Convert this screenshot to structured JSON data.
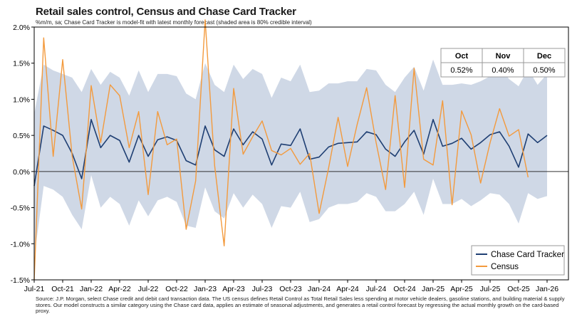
{
  "title": "Retail sales control, Census and Chase Card Tracker",
  "subtitle": "%m/m, sa; Chase Card Tracker is model-fit with latest monthly forecast (shaded area is 80% credible interval)",
  "source": "Source: J.P. Morgan, select Chase credit and debit card transaction data. The US census defines Retail Control as Total Retail Sales less spending at motor vehicle dealers, gasoline stations, and building material & supply stores. Our model constructs a similar category using the Chase card data, applies an estimate of seasonal adjustments, and generates a retail control forecast by regressing the actual monthly growth on the card-based proxy.",
  "forecast_table": {
    "headers": [
      "Oct",
      "Nov",
      "Dec"
    ],
    "values": [
      "0.52%",
      "0.40%",
      "0.50%"
    ]
  },
  "colors": {
    "tracker": "#1f3f73",
    "census": "#f39a3d",
    "band": "#cfd8e6"
  },
  "chart_data": {
    "type": "line",
    "title": "Retail sales control, Census and Chase Card Tracker",
    "ylabel": "",
    "xlabel": "",
    "ylim": [
      -1.5,
      2.0
    ],
    "yticks": [
      "-1.5%",
      "-1.0%",
      "-0.5%",
      "0.0%",
      "0.5%",
      "1.0%",
      "1.5%",
      "2.0%"
    ],
    "ytick_values": [
      -1.5,
      -1.0,
      -0.5,
      0.0,
      0.5,
      1.0,
      1.5,
      2.0
    ],
    "x_tick_labels": [
      "Jul-21",
      "Oct-21",
      "Jan-22",
      "Apr-22",
      "Jul-22",
      "Oct-22",
      "Jan-23",
      "Apr-23",
      "Jul-23",
      "Oct-23",
      "Jan-24",
      "Apr-24",
      "Jul-24",
      "Oct-24",
      "Jan-25",
      "Apr-25",
      "Jul-25",
      "Oct-25",
      "Jan-26"
    ],
    "x_start": "2021-07",
    "x_end": "2026-01",
    "legend_position": "bottom-right",
    "series": [
      {
        "name": "Chase Card Tracker",
        "start": "2021-07",
        "values": [
          -0.2,
          0.63,
          0.57,
          0.5,
          0.25,
          -0.1,
          0.72,
          0.33,
          0.5,
          0.43,
          0.13,
          0.5,
          0.21,
          0.44,
          0.48,
          0.43,
          0.15,
          0.09,
          0.63,
          0.3,
          0.21,
          0.59,
          0.37,
          0.55,
          0.45,
          0.09,
          0.38,
          0.36,
          0.59,
          0.17,
          0.2,
          0.34,
          0.39,
          0.4,
          0.41,
          0.55,
          0.51,
          0.31,
          0.21,
          0.41,
          0.57,
          0.24,
          0.72,
          0.35,
          0.39,
          0.46,
          0.31,
          0.4,
          0.51,
          0.55,
          0.35,
          0.06,
          0.52,
          0.4,
          0.5
        ]
      },
      {
        "name": "Census",
        "start": "2021-07",
        "values": [
          -1.5,
          1.85,
          0.21,
          1.55,
          0.21,
          -0.52,
          1.19,
          0.4,
          1.2,
          1.05,
          0.33,
          0.83,
          -0.32,
          0.83,
          0.37,
          0.45,
          -0.8,
          -0.13,
          2.1,
          0.08,
          -1.03,
          1.15,
          0.24,
          0.48,
          0.7,
          0.29,
          0.23,
          0.32,
          0.1,
          0.25,
          -0.58,
          0.05,
          0.75,
          0.07,
          0.65,
          1.16,
          0.4,
          -0.25,
          1.05,
          -0.22,
          1.43,
          0.17,
          0.09,
          0.98,
          -0.46,
          0.84,
          0.51,
          -0.16,
          0.4,
          0.87,
          0.49,
          0.58,
          -0.08
        ]
      }
    ],
    "band": {
      "name": "80% credible interval",
      "start": "2021-07",
      "upper": [
        0.8,
        1.48,
        1.4,
        1.35,
        1.3,
        1.1,
        1.42,
        1.2,
        1.38,
        1.3,
        1.05,
        1.4,
        1.1,
        1.35,
        1.35,
        1.32,
        1.08,
        1.0,
        1.5,
        1.2,
        1.1,
        1.48,
        1.28,
        1.42,
        1.35,
        1.02,
        1.3,
        1.25,
        1.48,
        1.1,
        1.12,
        1.22,
        1.22,
        1.25,
        1.25,
        1.42,
        1.4,
        1.2,
        1.1,
        1.3,
        1.45,
        1.12,
        1.55,
        1.2,
        1.2,
        1.22,
        1.2,
        1.25,
        1.32,
        1.45,
        1.28,
        1.18,
        1.42,
        1.2,
        1.35
      ],
      "lower": [
        -1.2,
        -0.2,
        -0.25,
        -0.35,
        -0.6,
        -0.8,
        -0.05,
        -0.5,
        -0.35,
        -0.45,
        -0.75,
        -0.4,
        -0.62,
        -0.4,
        -0.35,
        -0.42,
        -0.75,
        -0.78,
        -0.22,
        -0.55,
        -0.65,
        -0.3,
        -0.5,
        -0.32,
        -0.45,
        -0.78,
        -0.48,
        -0.5,
        -0.28,
        -0.7,
        -0.66,
        -0.5,
        -0.45,
        -0.45,
        -0.42,
        -0.3,
        -0.35,
        -0.55,
        -0.55,
        -0.45,
        -0.28,
        -0.6,
        -0.1,
        -0.45,
        -0.45,
        -0.38,
        -0.48,
        -0.4,
        -0.3,
        -0.32,
        -0.45,
        -0.72,
        -0.3,
        -0.38,
        -0.34
      ]
    }
  }
}
